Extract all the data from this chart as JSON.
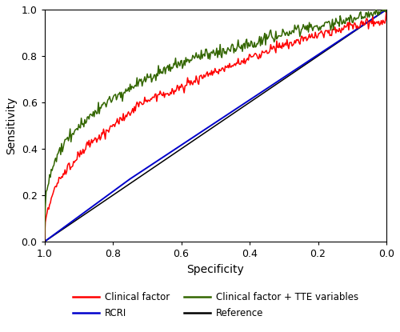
{
  "title": "",
  "xlabel": "Specificity",
  "ylabel": "Sensitivity",
  "xlim": [
    1.0,
    0.0
  ],
  "ylim": [
    0.0,
    1.0
  ],
  "xticks": [
    1.0,
    0.8,
    0.6,
    0.4,
    0.2,
    0.0
  ],
  "yticks": [
    0.0,
    0.2,
    0.4,
    0.6,
    0.8,
    1.0
  ],
  "colors": {
    "clinical": "#FF0000",
    "tte": "#336600",
    "rcri": "#0000CC",
    "reference": "#000000"
  },
  "legend_labels": {
    "clinical": "Clinical factor",
    "tte": "Clinical factor + TTE variables",
    "rcri": "RCRI",
    "reference": "Reference"
  },
  "background_color": "#FFFFFF",
  "line_width": 1.1,
  "figsize": [
    5.0,
    4.15
  ],
  "dpi": 100
}
